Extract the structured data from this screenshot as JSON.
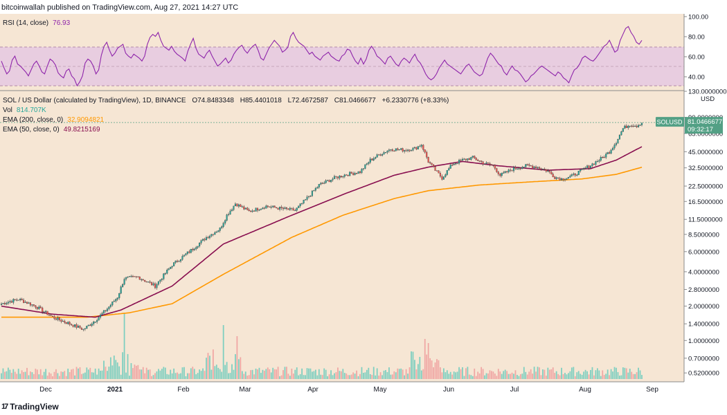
{
  "header": {
    "published": "bitcoinwallah published on TradingView.com, Aug 27, 2021 14:27 UTC"
  },
  "footer": {
    "brand": "TradingView",
    "logo_text": "17"
  },
  "colors": {
    "bg": "#f6e6d4",
    "rsi_band": "#e8cde0",
    "rsi_line": "#8e24aa",
    "up": "#26a69a",
    "down": "#ef5350",
    "ema200": "#ff9800",
    "ema50": "#880e4f",
    "price_tag": "#53a085"
  },
  "rsi": {
    "title": "RSI (14, close)",
    "value": "76.93",
    "levels": [
      "100.00",
      "80.00",
      "60.00",
      "40.00"
    ],
    "series": [
      55,
      48,
      42,
      45,
      56,
      60,
      52,
      50,
      47,
      44,
      40,
      46,
      52,
      55,
      50,
      44,
      42,
      50,
      57,
      55,
      51,
      43,
      40,
      38,
      45,
      47,
      40,
      37,
      30,
      34,
      40,
      53,
      57,
      55,
      50,
      42,
      46,
      61,
      70,
      74,
      66,
      60,
      63,
      68,
      70,
      72,
      63,
      60,
      58,
      62,
      60,
      58,
      55,
      60,
      72,
      79,
      82,
      80,
      84,
      76,
      70,
      68,
      66,
      70,
      65,
      62,
      60,
      58,
      55,
      65,
      72,
      78,
      68,
      62,
      60,
      58,
      63,
      66,
      60,
      55,
      50,
      52,
      55,
      58,
      53,
      56,
      62,
      66,
      69,
      71,
      66,
      63,
      67,
      70,
      72,
      66,
      58,
      56,
      62,
      68,
      72,
      76,
      73,
      70,
      64,
      66,
      69,
      80,
      84,
      78,
      74,
      72,
      70,
      66,
      62,
      64,
      60,
      58,
      56,
      60,
      62,
      64,
      60,
      58,
      56,
      55,
      60,
      62,
      67,
      66,
      60,
      55,
      52,
      58,
      52,
      57,
      66,
      70,
      66,
      60,
      58,
      55,
      52,
      58,
      60,
      56,
      52,
      50,
      55,
      58,
      56,
      53,
      58,
      62,
      56,
      53,
      48,
      42,
      38,
      36,
      38,
      42,
      48,
      52,
      56,
      52,
      50,
      48,
      46,
      44,
      42,
      46,
      50,
      52,
      48,
      44,
      42,
      40,
      42,
      50,
      58,
      63,
      60,
      56,
      52,
      50,
      44,
      41,
      46,
      50,
      46,
      45,
      42,
      38,
      34,
      36,
      40,
      42,
      45,
      48,
      50,
      48,
      46,
      44,
      42,
      40,
      44,
      42,
      38,
      36,
      33,
      40,
      46,
      48,
      52,
      58,
      60,
      58,
      56,
      55,
      58,
      62,
      66,
      70,
      72,
      76,
      70,
      64,
      66,
      76,
      82,
      88,
      90,
      84,
      80,
      74,
      72,
      76
    ]
  },
  "main": {
    "symbol": "SOL / US Dollar (calculated by TradingView), 1D, BINANCE",
    "ohlc": {
      "o": "O74.8483348",
      "h": "H85.4401018",
      "l": "L72.4672587",
      "c": "C81.0466677",
      "chg": "+6.2330776 (+8.33%)"
    },
    "vol_label": "Vol",
    "vol_value": "814.707K",
    "ema200_label": "EMA (200, close, 0)",
    "ema200_value": "32.9094821",
    "ema50_label": "EMA (50, close, 0)",
    "ema50_value": "49.8215169",
    "price_tag": {
      "symbol": "SOLUSD",
      "price": "81.0466677",
      "countdown": "09:32:17"
    }
  },
  "chart_data": {
    "type": "candlestick",
    "title": "SOL / US Dollar (calculated by TradingView), 1D, BINANCE",
    "y_scale": "log",
    "ylim": [
      0.5,
      120
    ],
    "x_labels": [
      "Dec",
      "2021",
      "Feb",
      "Mar",
      "Apr",
      "May",
      "Jun",
      "Jul",
      "Aug",
      "Sep"
    ],
    "y_ticks": [
      "130.0000000",
      "90.0000000",
      "65.0000000",
      "45.0000000",
      "32.5000000",
      "22.5000000",
      "16.5000000",
      "11.5000000",
      "8.5000000",
      "6.0000000",
      "4.0000000",
      "2.8000000",
      "2.0000000",
      "1.4000000",
      "1.0000000",
      "0.7000000",
      "0.5200000"
    ],
    "y_tick_values": [
      130,
      90,
      65,
      45,
      32.5,
      22.5,
      16.5,
      11.5,
      8.5,
      6,
      4,
      2.8,
      2,
      1.4,
      1,
      0.7,
      0.52
    ],
    "y_axis_unit": "USD",
    "close_anchors": [
      [
        0,
        2.1
      ],
      [
        10,
        2.3
      ],
      [
        20,
        2.0
      ],
      [
        30,
        1.6
      ],
      [
        40,
        1.4
      ],
      [
        48,
        1.25
      ],
      [
        55,
        1.5
      ],
      [
        62,
        1.9
      ],
      [
        68,
        2.4
      ],
      [
        72,
        3.5
      ],
      [
        80,
        3.6
      ],
      [
        90,
        3.0
      ],
      [
        100,
        4.6
      ],
      [
        110,
        6.0
      ],
      [
        120,
        8.0
      ],
      [
        128,
        9.5
      ],
      [
        132,
        12.5
      ],
      [
        137,
        15.8
      ],
      [
        145,
        13.5
      ],
      [
        155,
        15.0
      ],
      [
        165,
        14.2
      ],
      [
        172,
        13.8
      ],
      [
        178,
        17.0
      ],
      [
        186,
        23.0
      ],
      [
        195,
        26.5
      ],
      [
        202,
        28.5
      ],
      [
        210,
        30.0
      ],
      [
        216,
        38.0
      ],
      [
        222,
        43.0
      ],
      [
        228,
        47.5
      ],
      [
        236,
        46.5
      ],
      [
        242,
        48.0
      ],
      [
        246,
        52.0
      ],
      [
        250,
        37.0
      ],
      [
        254,
        31.0
      ],
      [
        258,
        26.5
      ],
      [
        264,
        35.0
      ],
      [
        270,
        38.0
      ],
      [
        276,
        40.0
      ],
      [
        282,
        36.0
      ],
      [
        288,
        34.0
      ],
      [
        292,
        28.0
      ],
      [
        300,
        32.0
      ],
      [
        308,
        34.0
      ],
      [
        314,
        33.0
      ],
      [
        320,
        30.5
      ],
      [
        324,
        27.0
      ],
      [
        328,
        26.0
      ],
      [
        334,
        27.5
      ],
      [
        340,
        31.0
      ],
      [
        346,
        35.0
      ],
      [
        352,
        40.0
      ],
      [
        356,
        45.0
      ],
      [
        360,
        55.0
      ],
      [
        364,
        72.0
      ],
      [
        368,
        78.0
      ],
      [
        372,
        76.0
      ],
      [
        375,
        81.0
      ]
    ],
    "ema50_anchors": [
      [
        0,
        2.0
      ],
      [
        30,
        1.7
      ],
      [
        55,
        1.6
      ],
      [
        70,
        1.85
      ],
      [
        100,
        3.0
      ],
      [
        130,
        7.0
      ],
      [
        170,
        12.5
      ],
      [
        200,
        19.0
      ],
      [
        230,
        28.0
      ],
      [
        250,
        33.0
      ],
      [
        270,
        37.0
      ],
      [
        290,
        34.0
      ],
      [
        320,
        31.0
      ],
      [
        345,
        32.0
      ],
      [
        360,
        38.0
      ],
      [
        375,
        49.8
      ]
    ],
    "ema200_anchors": [
      [
        0,
        1.6
      ],
      [
        50,
        1.6
      ],
      [
        75,
        1.75
      ],
      [
        100,
        2.1
      ],
      [
        130,
        3.8
      ],
      [
        170,
        8.0
      ],
      [
        200,
        12.5
      ],
      [
        230,
        17.5
      ],
      [
        250,
        20.5
      ],
      [
        280,
        23.0
      ],
      [
        310,
        24.5
      ],
      [
        340,
        26.0
      ],
      [
        360,
        28.5
      ],
      [
        375,
        32.9
      ]
    ],
    "volume_bars": "relative volume per daily candle, scaled to the bottom pane"
  }
}
